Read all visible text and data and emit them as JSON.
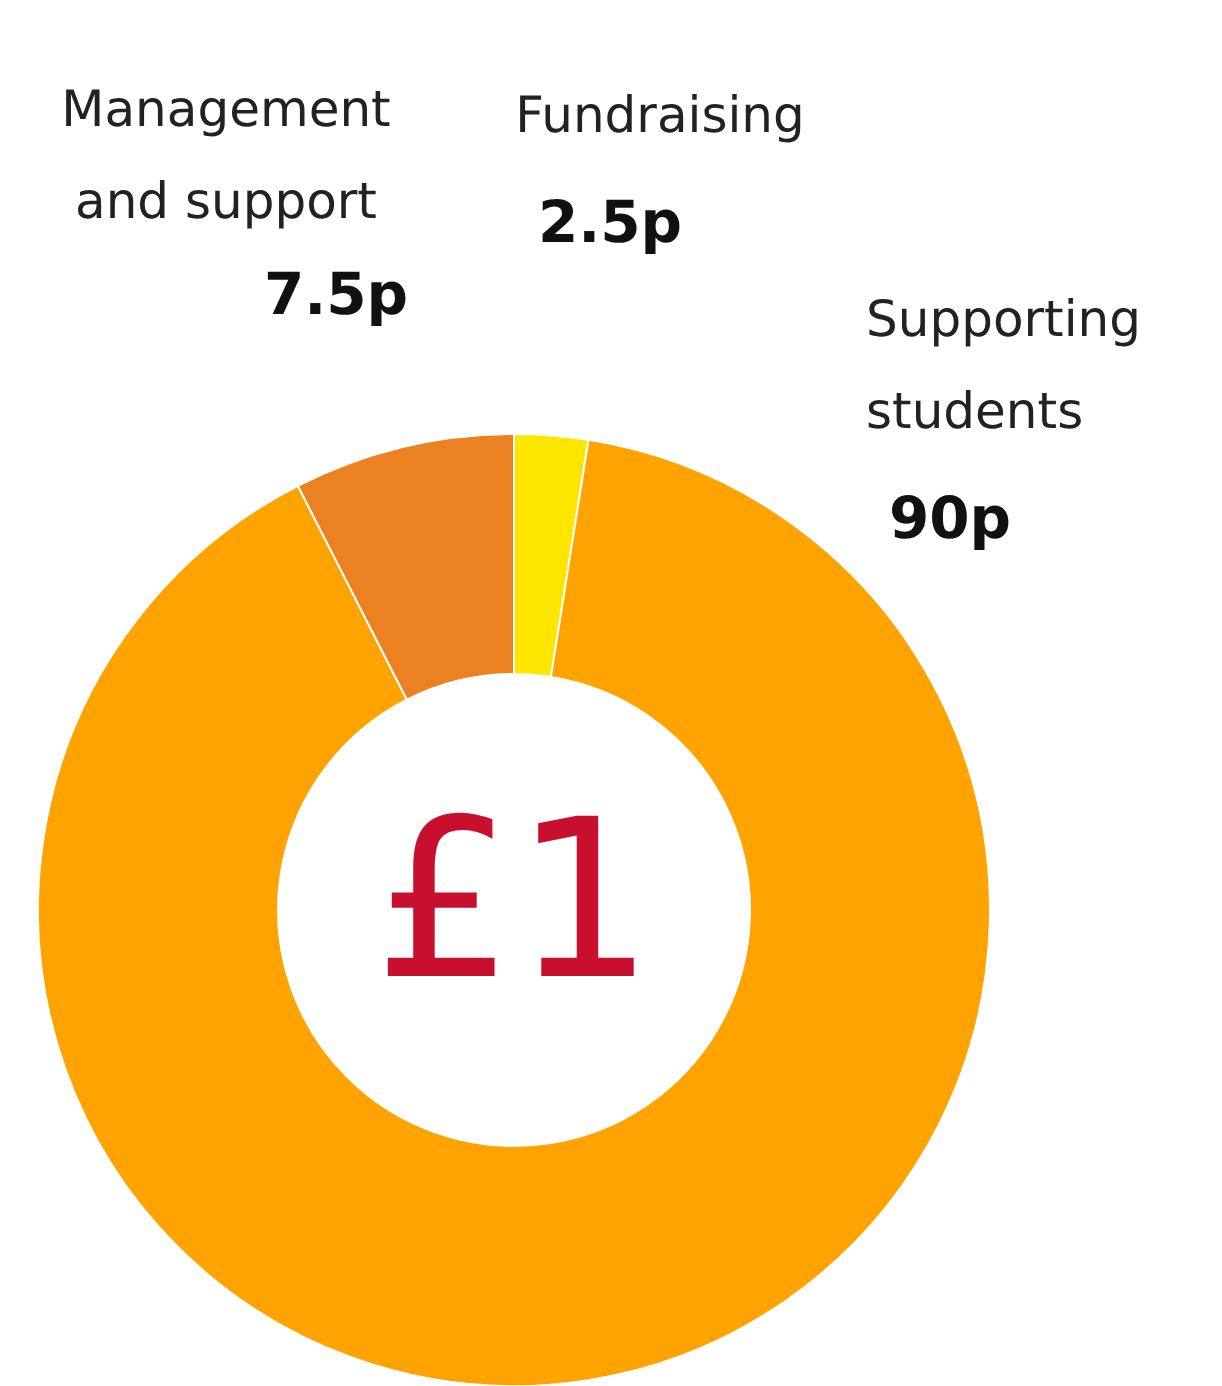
{
  "chart_data": {
    "type": "donut",
    "categories": [
      "Fundraising",
      "Supporting students",
      "Management and support"
    ],
    "values": [
      2.5,
      90,
      7.5
    ],
    "colors": [
      "#ffe600",
      "#ffa300",
      "#ec8122"
    ],
    "value_labels": [
      "2.5p",
      "90p",
      "7.5p"
    ],
    "annotations": [
      "£1"
    ]
  }
}
